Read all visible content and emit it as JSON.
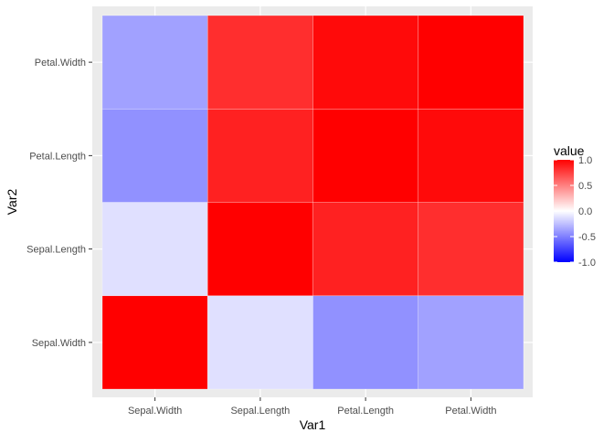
{
  "chart_data": {
    "type": "heatmap",
    "title": "",
    "xlabel": "Var1",
    "ylabel": "Var2",
    "x_categories": [
      "Sepal.Width",
      "Sepal.Length",
      "Petal.Length",
      "Petal.Width"
    ],
    "y_categories": [
      "Sepal.Width",
      "Sepal.Length",
      "Petal.Length",
      "Petal.Width"
    ],
    "cells": [
      {
        "x": "Sepal.Width",
        "y": "Sepal.Width",
        "value": 1.0
      },
      {
        "x": "Sepal.Length",
        "y": "Sepal.Width",
        "value": -0.12
      },
      {
        "x": "Petal.Length",
        "y": "Sepal.Width",
        "value": -0.43
      },
      {
        "x": "Petal.Width",
        "y": "Sepal.Width",
        "value": -0.37
      },
      {
        "x": "Sepal.Width",
        "y": "Sepal.Length",
        "value": -0.12
      },
      {
        "x": "Sepal.Length",
        "y": "Sepal.Length",
        "value": 1.0
      },
      {
        "x": "Petal.Length",
        "y": "Sepal.Length",
        "value": 0.87
      },
      {
        "x": "Petal.Width",
        "y": "Sepal.Length",
        "value": 0.82
      },
      {
        "x": "Sepal.Width",
        "y": "Petal.Length",
        "value": -0.43
      },
      {
        "x": "Sepal.Length",
        "y": "Petal.Length",
        "value": 0.87
      },
      {
        "x": "Petal.Length",
        "y": "Petal.Length",
        "value": 1.0
      },
      {
        "x": "Petal.Width",
        "y": "Petal.Length",
        "value": 0.96
      },
      {
        "x": "Sepal.Width",
        "y": "Petal.Width",
        "value": -0.37
      },
      {
        "x": "Sepal.Length",
        "y": "Petal.Width",
        "value": 0.82
      },
      {
        "x": "Petal.Length",
        "y": "Petal.Width",
        "value": 0.96
      },
      {
        "x": "Petal.Width",
        "y": "Petal.Width",
        "value": 1.0
      }
    ],
    "color_scale": {
      "low": "#0000FF",
      "mid": "#FFFFFF",
      "high": "#FF0000",
      "limits": [
        -1,
        1
      ]
    },
    "legend": {
      "title": "value",
      "position": "right",
      "ticks": [
        {
          "value": 1.0,
          "label": "1.0"
        },
        {
          "value": 0.5,
          "label": "0.5"
        },
        {
          "value": 0.0,
          "label": "0.0"
        },
        {
          "value": -0.5,
          "label": "-0.5"
        },
        {
          "value": -1.0,
          "label": "-1.0"
        }
      ]
    },
    "panel_background": "#EBEBEB",
    "grid": true
  }
}
